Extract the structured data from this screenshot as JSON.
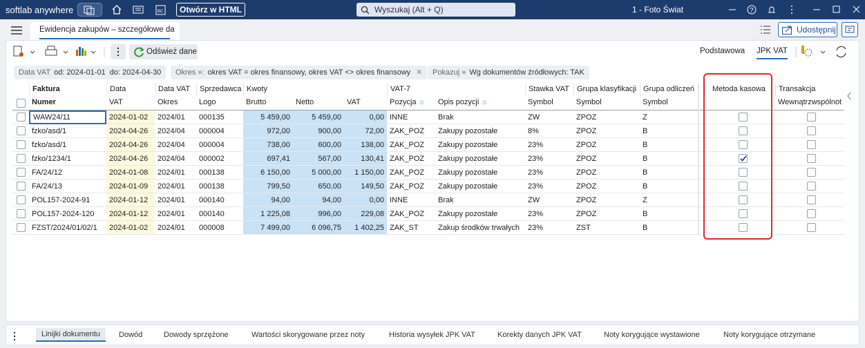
{
  "titlebar": {
    "app": "softlab anywhere",
    "open_html": "Otwórz w HTML",
    "search": "Wyszukaj (Alt + Q)",
    "company": "1 - Foto Świat"
  },
  "tabbar": {
    "tab": "Ewidencja zakupów – szczegółowe da",
    "share": "Udostępnij"
  },
  "toolbar": {
    "refresh": "Odśwież dane",
    "views": [
      "Podstawowa",
      "JPK VAT"
    ]
  },
  "filters": [
    {
      "label": "Data VAT",
      "parts": [
        "od: 2024-01-01",
        "do: 2024-04-30"
      ]
    },
    {
      "label": "Okres »:",
      "parts": [
        "okres VAT = okres finansowy, okres VAT <> okres finansowy"
      ]
    },
    {
      "label": "Pokazuj »",
      "parts": [
        "Wg dokumentów źródłowych: TAK"
      ]
    }
  ],
  "table": {
    "header_top": [
      "Faktura",
      "Data",
      "Data VAT",
      "Sprzedawca",
      "Kwoty",
      "VAT-7",
      "Stawka VAT",
      "Grupa klasyfikacji",
      "Grupa odliczeń",
      "Metoda kasowa",
      "Transakcja"
    ],
    "header_bottom": [
      "Numer",
      "VAT",
      "Okres",
      "Logo",
      "Brutto",
      "Netto",
      "VAT",
      "Pozycja",
      "Opis pozycji",
      "Symbol",
      "Symbol",
      "Symbol",
      "Wewnątrzwspólnot"
    ],
    "rows": [
      [
        "WAW24/11",
        "2024-01-02",
        "2024/01",
        "000135",
        "5 459,00",
        "5 459,00",
        "0,00",
        "INNE",
        "Brak",
        "ZW",
        "ZPOZ",
        "Z"
      ],
      [
        "fzko/asd/1",
        "2024-04-26",
        "2024/04",
        "000004",
        "972,00",
        "900,00",
        "72,00",
        "ZAK_POZ",
        "Zakupy pozostałe",
        "8%",
        "ZPOZ",
        "B"
      ],
      [
        "fzko/asd/1",
        "2024-04-26",
        "2024/04",
        "000004",
        "738,00",
        "600,00",
        "138,00",
        "ZAK_POZ",
        "Zakupy pozostałe",
        "23%",
        "ZPOZ",
        "B"
      ],
      [
        "fzko/1234/1",
        "2024-04-26",
        "2024/04",
        "000002",
        "697,41",
        "567,00",
        "130,41",
        "ZAK_POZ",
        "Zakupy pozostałe",
        "23%",
        "ZPOZ",
        "B"
      ],
      [
        "FA/24/12",
        "2024-01-08",
        "2024/01",
        "000138",
        "6 150,00",
        "5 000,00",
        "1 150,00",
        "ZAK_POZ",
        "Zakupy pozostałe",
        "23%",
        "ZPOZ",
        "B"
      ],
      [
        "FA/24/13",
        "2024-01-09",
        "2024/01",
        "000138",
        "799,50",
        "650,00",
        "149,50",
        "ZAK_POZ",
        "Zakupy pozostałe",
        "23%",
        "ZPOZ",
        "B"
      ],
      [
        "POL157-2024-91",
        "2024-01-12",
        "2024/01",
        "000140",
        "94,00",
        "94,00",
        "0,00",
        "INNE",
        "Brak",
        "ZW",
        "ZPOZ",
        "Z"
      ],
      [
        "POL157-2024-120",
        "2024-01-12",
        "2024/01",
        "000140",
        "1 225,08",
        "996,00",
        "229,08",
        "ZAK_POZ",
        "Zakupy pozostałe",
        "23%",
        "ZPOZ",
        "B"
      ],
      [
        "FZST/2024/01/02/1",
        "2024-01-02",
        "2024/01",
        "000008",
        "7 499,00",
        "6 096,75",
        "1 402,25",
        "ZAK_ST",
        "Zakup środków trwałych",
        "23%",
        "ZST",
        "B"
      ]
    ],
    "metoda_kasowa": [
      false,
      false,
      false,
      true,
      false,
      false,
      false,
      false,
      false
    ],
    "transakcja": [
      false,
      false,
      false,
      false,
      false,
      false,
      false,
      false,
      false
    ]
  },
  "bottom_tabs": [
    "Linijki dokumentu",
    "Dowód",
    "Dowody sprzężone",
    "Wartości skorygowane przez noty",
    "Historia wysyłek JPK VAT",
    "Korekty danych JPK VAT",
    "Noty korygujące wystawione",
    "Noty korygujące otrzymane"
  ]
}
